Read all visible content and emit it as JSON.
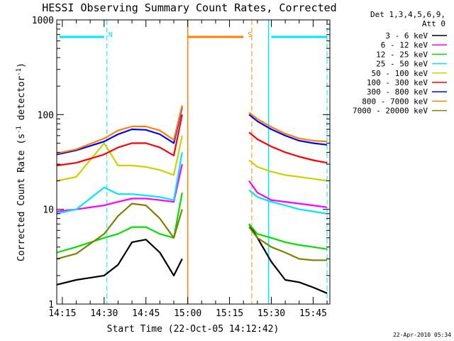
{
  "chart_data": {
    "type": "line",
    "title": "HESSI Observing Summary Count Rates, Corrected",
    "xlabel": "Start Time (22-Oct-05 14:12:42)",
    "ylabel_main": "Corrected Count Rate (s",
    "ylabel_sup1": "-1",
    "ylabel_mid": " detector",
    "ylabel_sup2": "-1",
    "ylabel_end": ")",
    "y_scale": "log",
    "ylim": [
      1,
      1000
    ],
    "xlim": [
      "14:13",
      "15:51"
    ],
    "x_tick_labels": [
      "14:15",
      "14:30",
      "14:45",
      "15:00",
      "15:15",
      "15:30",
      "15:45"
    ],
    "y_tick_labels": [
      "1",
      "10",
      "100",
      "1000"
    ],
    "legend_header": [
      "Det 1,3,4,5,6,9,",
      "Att 0"
    ],
    "legend_position": "right",
    "footer_date": "22-Apr-2010 05:34",
    "gaps": [
      [
        "14:58",
        "15:22"
      ]
    ],
    "markers": [
      {
        "label": "N",
        "color": "#00e5ff",
        "bar_range": [
          "14:14",
          "14:30"
        ],
        "end_time": "14:31"
      },
      {
        "label": "S",
        "color": "#ff8000",
        "bar_range": [
          "15:00",
          "15:20"
        ],
        "end_time": "15:23"
      },
      {
        "label": "",
        "color": "#00e5ff",
        "bar_range": [
          "15:30",
          "15:50"
        ],
        "end_time": "15:50"
      }
    ],
    "solid_lines": [
      {
        "time": "15:00",
        "color": "#ff8000"
      },
      {
        "time": "15:29",
        "color": "#00e5ff"
      }
    ],
    "series": [
      {
        "name": "3 - 6 keV",
        "color": "#000000",
        "x": [
          "14:13",
          "14:20",
          "14:30",
          "14:35",
          "14:40",
          "14:45",
          "14:50",
          "14:55",
          "14:58",
          "15:22",
          "15:25",
          "15:30",
          "15:35",
          "15:40",
          "15:45",
          "15:50"
        ],
        "y": [
          1.6,
          1.8,
          2.0,
          2.6,
          4.5,
          4.8,
          3.5,
          2.0,
          3.0,
          7.0,
          5.0,
          2.8,
          1.8,
          1.7,
          1.5,
          1.3
        ]
      },
      {
        "name": "6 - 12 keV",
        "color": "#ff00ff",
        "x": [
          "14:13",
          "14:20",
          "14:30",
          "14:35",
          "14:40",
          "14:45",
          "14:50",
          "14:55",
          "14:58",
          "15:22",
          "15:25",
          "15:30",
          "15:35",
          "15:40",
          "15:45",
          "15:50"
        ],
        "y": [
          9.5,
          10.0,
          11.0,
          12.0,
          13.0,
          13.0,
          12.5,
          12.0,
          30.0,
          20.0,
          15.0,
          12.5,
          12.0,
          11.5,
          11.0,
          10.5
        ]
      },
      {
        "name": "12 - 25 keV",
        "color": "#00e000",
        "x": [
          "14:13",
          "14:20",
          "14:30",
          "14:35",
          "14:40",
          "14:45",
          "14:50",
          "14:55",
          "14:58",
          "15:22",
          "15:25",
          "15:30",
          "15:35",
          "15:40",
          "15:45",
          "15:50"
        ],
        "y": [
          3.5,
          4.0,
          5.0,
          5.5,
          6.5,
          6.5,
          5.5,
          5.0,
          15.0,
          7.0,
          5.5,
          5.0,
          4.5,
          4.2,
          4.0,
          3.8
        ]
      },
      {
        "name": "25 - 50 keV",
        "color": "#00e5ff",
        "x": [
          "14:13",
          "14:20",
          "14:30",
          "14:35",
          "14:40",
          "14:45",
          "14:50",
          "14:55",
          "14:58",
          "15:22",
          "15:25",
          "15:30",
          "15:35",
          "15:40",
          "15:45",
          "15:50"
        ],
        "y": [
          9.0,
          10.0,
          17.0,
          14.5,
          14.5,
          14.0,
          13.5,
          12.5,
          40.0,
          16.0,
          13.5,
          12.0,
          11.0,
          10.0,
          9.5,
          9.0
        ]
      },
      {
        "name": "50 - 100 keV",
        "color": "#d0d000",
        "x": [
          "14:13",
          "14:20",
          "14:30",
          "14:35",
          "14:40",
          "14:45",
          "14:50",
          "14:55",
          "14:58",
          "15:22",
          "15:25",
          "15:30",
          "15:35",
          "15:40",
          "15:45",
          "15:50"
        ],
        "y": [
          20.0,
          22.0,
          50.0,
          29.0,
          29.0,
          28.0,
          26.0,
          23.0,
          60.0,
          33.0,
          28.0,
          25.0,
          23.0,
          22.0,
          21.0,
          20.0
        ]
      },
      {
        "name": "100 - 300 keV",
        "color": "#ff0000",
        "x": [
          "14:13",
          "14:20",
          "14:30",
          "14:35",
          "14:40",
          "14:45",
          "14:50",
          "14:55",
          "14:58",
          "15:22",
          "15:25",
          "15:30",
          "15:35",
          "15:40",
          "15:45",
          "15:50"
        ],
        "y": [
          29.0,
          31.0,
          38.0,
          45.0,
          50.0,
          50.0,
          45.0,
          37.0,
          100.0,
          65.0,
          55.0,
          46.0,
          40.0,
          36.0,
          33.0,
          31.0
        ]
      },
      {
        "name": "300 - 800 keV",
        "color": "#0000ff",
        "x": [
          "14:13",
          "14:20",
          "14:30",
          "14:35",
          "14:40",
          "14:45",
          "14:50",
          "14:55",
          "14:58",
          "15:22",
          "15:25",
          "15:30",
          "15:35",
          "15:40",
          "15:45",
          "15:50"
        ],
        "y": [
          38.0,
          42.0,
          52.0,
          62.0,
          70.0,
          69.0,
          62.0,
          50.0,
          120.0,
          100.0,
          85.0,
          70.0,
          60.0,
          53.0,
          50.0,
          48.0
        ]
      },
      {
        "name": "800 - 7000 keV",
        "color": "#ff8000",
        "x": [
          "14:13",
          "14:20",
          "14:30",
          "14:35",
          "14:40",
          "14:45",
          "14:50",
          "14:55",
          "14:58",
          "15:22",
          "15:25",
          "15:30",
          "15:35",
          "15:40",
          "15:45",
          "15:50"
        ],
        "y": [
          39.0,
          43.0,
          56.0,
          68.0,
          75.0,
          75.0,
          68.0,
          54.0,
          125.0,
          105.0,
          90.0,
          74.0,
          63.0,
          56.0,
          53.0,
          52.0
        ]
      },
      {
        "name": "7000 - 20000 keV",
        "color": "#808000",
        "x": [
          "14:13",
          "14:20",
          "14:30",
          "14:35",
          "14:40",
          "14:45",
          "14:50",
          "14:55",
          "14:58",
          "15:22",
          "15:25",
          "15:30",
          "15:35",
          "15:40",
          "15:45",
          "15:50"
        ],
        "y": [
          3.0,
          3.4,
          5.5,
          8.5,
          11.5,
          11.0,
          8.0,
          5.0,
          10.0,
          6.5,
          5.0,
          4.0,
          3.5,
          3.0,
          2.9,
          2.9
        ]
      }
    ]
  }
}
